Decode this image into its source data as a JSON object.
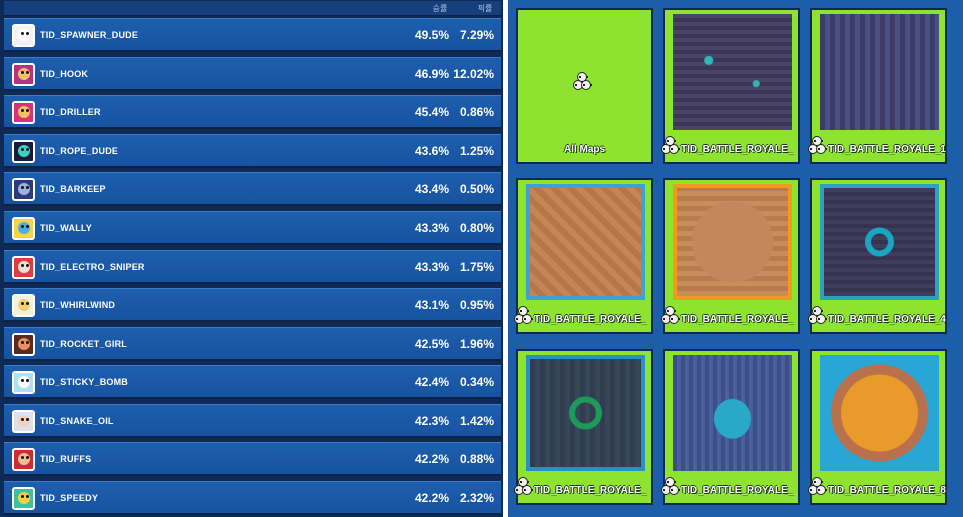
{
  "table": {
    "header": {
      "win_rate": "승률",
      "pick_rate": "픽률"
    },
    "rows": [
      {
        "name": "TID_SPAWNER_DUDE",
        "win": "49.5%",
        "pick": "7.29%",
        "color": "#f2f2f2",
        "skin": "#ffffff"
      },
      {
        "name": "TID_HOOK",
        "win": "46.9%",
        "pick": "12.02%",
        "color": "#b8327c",
        "skin": "#f0c070"
      },
      {
        "name": "TID_DRILLER",
        "win": "45.4%",
        "pick": "0.86%",
        "color": "#d9327a",
        "skin": "#f7c060"
      },
      {
        "name": "TID_ROPE_DUDE",
        "win": "43.6%",
        "pick": "1.25%",
        "color": "#1a1a3a",
        "skin": "#3dd0c0"
      },
      {
        "name": "TID_BARKEEP",
        "win": "43.4%",
        "pick": "0.50%",
        "color": "#2b3b7a",
        "skin": "#9ab0e0"
      },
      {
        "name": "TID_WALLY",
        "win": "43.3%",
        "pick": "0.80%",
        "color": "#f2d34a",
        "skin": "#4ab0e0"
      },
      {
        "name": "TID_ELECTRO_SNIPER",
        "win": "43.3%",
        "pick": "1.75%",
        "color": "#d84040",
        "skin": "#f4e0d0"
      },
      {
        "name": "TID_WHIRLWIND",
        "win": "43.1%",
        "pick": "0.95%",
        "color": "#f4f0e0",
        "skin": "#f2d070"
      },
      {
        "name": "TID_ROCKET_GIRL",
        "win": "42.5%",
        "pick": "1.96%",
        "color": "#5a2a1a",
        "skin": "#e89060"
      },
      {
        "name": "TID_STICKY_BOMB",
        "win": "42.4%",
        "pick": "0.34%",
        "color": "#b0e0f0",
        "skin": "#ffffff"
      },
      {
        "name": "TID_SNAKE_OIL",
        "win": "42.3%",
        "pick": "1.42%",
        "color": "#e0e0e8",
        "skin": "#f0d0c0"
      },
      {
        "name": "TID_RUFFS",
        "win": "42.2%",
        "pick": "0.88%",
        "color": "#c83030",
        "skin": "#f0c090"
      },
      {
        "name": "TID_SPEEDY",
        "win": "42.2%",
        "pick": "2.32%",
        "color": "#40c0a0",
        "skin": "#f4d040"
      }
    ]
  },
  "maps": {
    "tiles": [
      {
        "label": "All Maps",
        "style": "all"
      },
      {
        "label": "TID_BATTLE_ROYALE_",
        "style": "blue"
      },
      {
        "label": "TID_BATTLE_ROYALE_1",
        "style": "blue2"
      },
      {
        "label": "TID_BATTLE_ROYALE_",
        "style": "sand"
      },
      {
        "label": "TID_BATTLE_ROYALE_",
        "style": "sand2"
      },
      {
        "label": "TID_BATTLE_ROYALE_4",
        "style": "ring"
      },
      {
        "label": "TID_BATTLE_ROYALE_",
        "style": "green"
      },
      {
        "label": "TID_BATTLE_ROYALE_",
        "style": "lake"
      },
      {
        "label": "TID_BATTLE_ROYALE_8",
        "style": "turtle"
      }
    ]
  }
}
